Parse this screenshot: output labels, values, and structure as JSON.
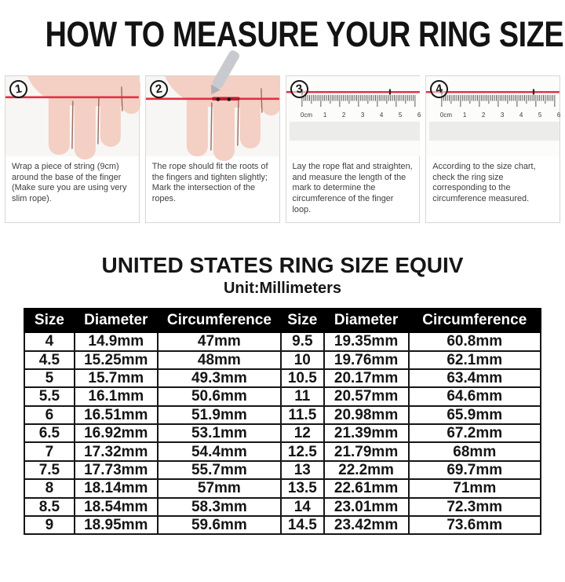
{
  "page_title": "HOW TO MEASURE YOUR RING SIZE",
  "steps": [
    {
      "number": "1",
      "description": "Wrap a piece of string (9cm) around the base of the finger (Make sure you are using very slim rope)."
    },
    {
      "number": "2",
      "description": "The rope should fit the roots of the fingers and tighten slightly; Mark the intersection of the ropes."
    },
    {
      "number": "3",
      "description": "Lay the rope flat and straighten, and measure the length of the mark to determine the circumference of the finger loop."
    },
    {
      "number": "4",
      "description": "According to the size chart, check the ring size corresponding to the circumference measured."
    }
  ],
  "ruler": {
    "labels": [
      "0cm",
      "1",
      "2",
      "3",
      "4",
      "5",
      "6"
    ]
  },
  "size_chart": {
    "title": "UNITED STATES RING SIZE EQUIV",
    "subtitle": "Unit:Millimeters",
    "headers": [
      "Size",
      "Diameter",
      "Circumference",
      "Size",
      "Diameter",
      "Circumference"
    ],
    "rows": [
      [
        "4",
        "14.9mm",
        "47mm",
        "9.5",
        "19.35mm",
        "60.8mm"
      ],
      [
        "4.5",
        "15.25mm",
        "48mm",
        "10",
        "19.76mm",
        "62.1mm"
      ],
      [
        "5",
        "15.7mm",
        "49.3mm",
        "10.5",
        "20.17mm",
        "63.4mm"
      ],
      [
        "5.5",
        "16.1mm",
        "50.6mm",
        "11",
        "20.57mm",
        "64.6mm"
      ],
      [
        "6",
        "16.51mm",
        "51.9mm",
        "11.5",
        "20.98mm",
        "65.9mm"
      ],
      [
        "6.5",
        "16.92mm",
        "53.1mm",
        "12",
        "21.39mm",
        "67.2mm"
      ],
      [
        "7",
        "17.32mm",
        "54.4mm",
        "12.5",
        "21.79mm",
        "68mm"
      ],
      [
        "7.5",
        "17.73mm",
        "55.7mm",
        "13",
        "22.2mm",
        "69.7mm"
      ],
      [
        "8",
        "18.14mm",
        "57mm",
        "13.5",
        "22.61mm",
        "71mm"
      ],
      [
        "8.5",
        "18.54mm",
        "58.3mm",
        "14",
        "23.01mm",
        "72.3mm"
      ],
      [
        "9",
        "18.95mm",
        "59.6mm",
        "14.5",
        "23.42mm",
        "73.6mm"
      ]
    ]
  },
  "colors": {
    "string_red": "#e62e42",
    "header_bg": "#000000",
    "header_text": "#ffffff",
    "table_border": "#161616"
  }
}
